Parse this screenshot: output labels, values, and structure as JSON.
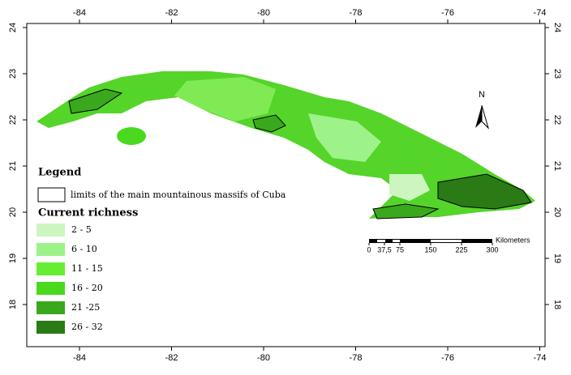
{
  "map": {
    "xticks": [
      -84,
      -82,
      -80,
      -78,
      -76,
      -74
    ],
    "yticks": [
      24,
      23,
      22,
      21,
      20,
      19,
      18
    ],
    "legend": {
      "title": "Legend",
      "boundary": "limits of the main mountainous massifs of Cuba",
      "richness_title": "Current richness",
      "classes": [
        {
          "label": "2 - 5",
          "color": "#ccf5c0"
        },
        {
          "label": "6 - 10",
          "color": "#9ef28a"
        },
        {
          "label": "11 - 15",
          "color": "#66ee33"
        },
        {
          "label": "16 - 20",
          "color": "#4ad91e"
        },
        {
          "label": "21 -25",
          "color": "#3aa81c"
        },
        {
          "label": "26 - 32",
          "color": "#2a7a15"
        }
      ]
    },
    "scale": {
      "unit": "Kilometers",
      "ticks": [
        0,
        {
          "value": 37.5,
          "label": "37,5"
        },
        75,
        150,
        225,
        300
      ]
    },
    "north": "N"
  }
}
